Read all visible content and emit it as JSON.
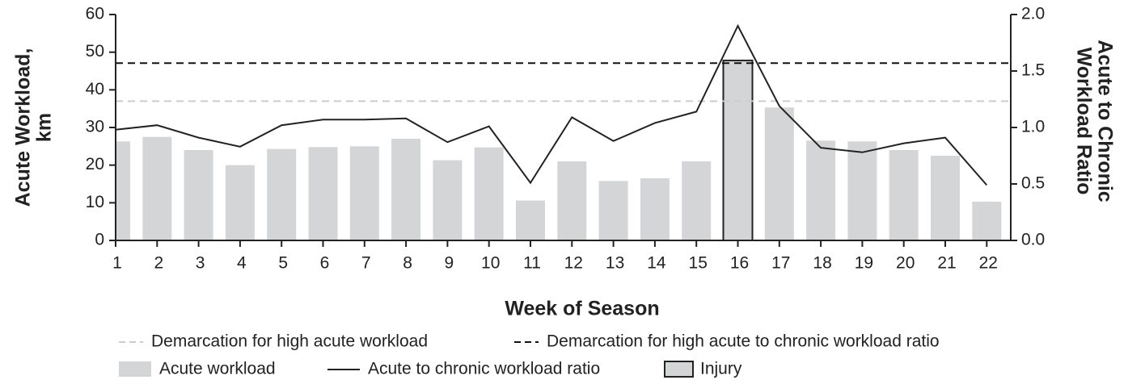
{
  "chart_data": {
    "type": "bar",
    "xlabel": "Week of Season",
    "ylabel": [
      "Acute Workload,",
      "km"
    ],
    "y2label": [
      "Acute to Chronic",
      "Workload Ratio"
    ],
    "categories": [
      "1",
      "2",
      "3",
      "4",
      "5",
      "6",
      "7",
      "8",
      "9",
      "10",
      "11",
      "12",
      "13",
      "14",
      "15",
      "16",
      "17",
      "18",
      "19",
      "20",
      "21",
      "22"
    ],
    "series": [
      {
        "name": "Acute workload",
        "type": "bar",
        "color": "#d4d5d7",
        "values": [
          26.3,
          27.5,
          24,
          20,
          24.3,
          24.8,
          25,
          27,
          21.3,
          24.7,
          10.6,
          21,
          15.8,
          16.5,
          21,
          47.8,
          35.3,
          26.5,
          26.3,
          24,
          22.5,
          10.3
        ]
      },
      {
        "name": "Acute to chronic workload ratio",
        "type": "line",
        "axis": "y2",
        "color": "#222222",
        "values": [
          0.98,
          1.02,
          0.91,
          0.83,
          1.02,
          1.07,
          1.07,
          1.08,
          0.87,
          1.01,
          0.51,
          1.09,
          0.88,
          1.04,
          1.14,
          1.9,
          1.19,
          0.82,
          0.78,
          0.86,
          0.91,
          0.49
        ]
      }
    ],
    "injury": {
      "name": "Injury",
      "category": "16",
      "color": "#d4d5d7",
      "edge": "#222222"
    },
    "reference_lines": [
      {
        "name": "Demarcation for high acute workload",
        "value": 37,
        "axis": "y",
        "color": "#cccccc"
      },
      {
        "name": "Demarcation for high acute to chronic workload ratio",
        "value": 1.57,
        "axis": "y2",
        "color": "#111111"
      }
    ],
    "ylim": [
      0,
      60
    ],
    "yticks": [
      0,
      10,
      20,
      30,
      40,
      50,
      60
    ],
    "y2lim": [
      0,
      2
    ],
    "y2ticks": [
      {
        "value": 0,
        "label": "0.0"
      },
      0.5,
      {
        "value": 1,
        "label": "1.0"
      },
      1.5,
      {
        "value": 2,
        "label": "2.0"
      }
    ]
  }
}
